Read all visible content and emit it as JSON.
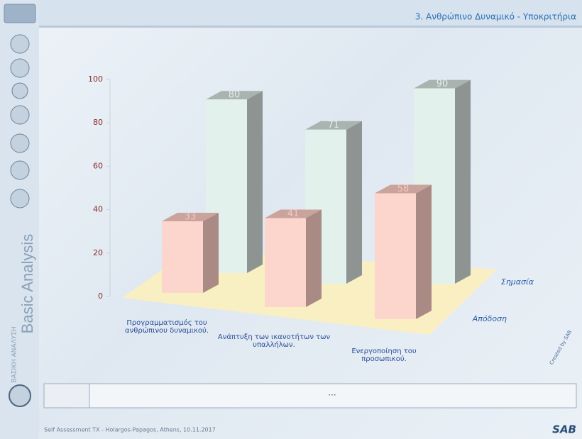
{
  "header": {
    "title": "3. Ανθρώπινο Δυναμικό - Υποκριτήρια"
  },
  "sidebar": {
    "label": "Basic Analysis",
    "sublabel": "ΒΑΣΙΚΗ\nΑΝΑΛΥΣΗ"
  },
  "chart_data": {
    "type": "bar",
    "categories": [
      "Προγραμματισμός του\nανθρώπινου δυναμικού.",
      "Ανάπτυξη των ικανοτήτων των\nυπαλλήλων.",
      "Ενεργοποίηση του\nπροσωπικού."
    ],
    "series": [
      {
        "name": "Σημασία",
        "color": "#e2f1ec",
        "values": [
          80,
          71,
          90
        ]
      },
      {
        "name": "Απόδοση",
        "color": "#fcd5cc",
        "values": [
          33,
          41,
          58
        ]
      }
    ],
    "ylim": [
      0,
      100
    ],
    "yticks": [
      0,
      20,
      40,
      60,
      80,
      100
    ]
  },
  "credit": "Created by SAB",
  "status": "...",
  "footer": "Self Assessment TX - Holargos-Papagos, Athens, 10.11.2017",
  "logo": "SAB"
}
